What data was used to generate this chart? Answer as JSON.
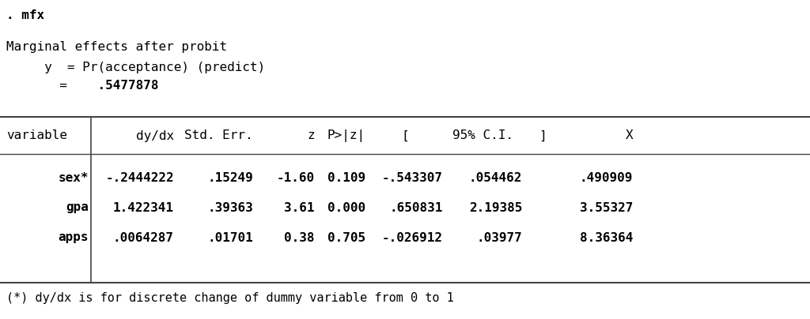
{
  "bg_color": "#ffffff",
  "text_color": "#000000",
  "font_family": "monospace",
  "command_line": ". mfx",
  "header_line1": "Marginal effects after probit",
  "header_line2": "     y  = Pr(acceptance) (predict)",
  "header_line2b": "       =  ",
  "header_bold": ".5477878",
  "col_headers": [
    "variable",
    "dy/dx",
    "Std. Err.",
    "z",
    "P>|z|",
    "[",
    "95% C.I.",
    "]",
    "X"
  ],
  "rows": [
    [
      "sex*",
      "-.2444222",
      ".15249",
      "-1.60",
      "0.109",
      "-.543307",
      ".054462",
      ".490909"
    ],
    [
      "gpa",
      "1.422341",
      ".39363",
      "3.61",
      "0.000",
      ".650831",
      "2.19385",
      "3.55327"
    ],
    [
      "apps",
      ".0064287",
      ".01701",
      "0.38",
      "0.705",
      "-.026912",
      ".03977",
      "8.36364"
    ]
  ],
  "footer": "(*) dy/dx is for discrete change of dummy variable from 0 to 1",
  "fontsize": 11.5,
  "line_color": "#444444"
}
